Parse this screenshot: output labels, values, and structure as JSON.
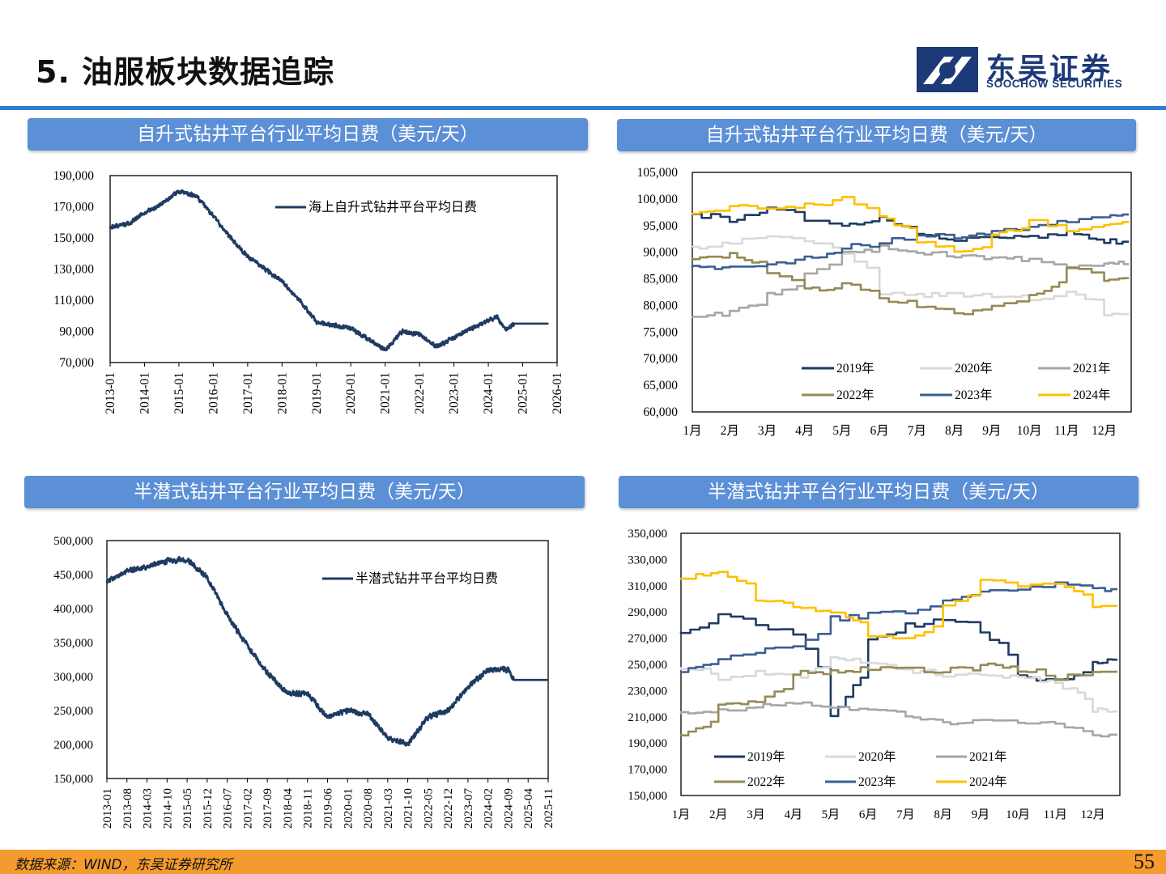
{
  "page": {
    "title": "5. 油服板块数据追踪",
    "logo_name": "东吴证券",
    "logo_en": "SOOCHOW SECURITIES",
    "footer_source": "数据来源：WIND，东吴证券研究所",
    "page_number": "55"
  },
  "colors": {
    "accent_blue": "#2f7fcf",
    "header_blue": "#5b8fd6",
    "navy": "#1f3b63",
    "footer_orange": "#f39b2e"
  },
  "panels": {
    "top_left_header": "自升式钻井平台行业平均日费（美元/天）",
    "top_right_header": "自升式钻井平台行业平均日费（美元/天）",
    "bottom_left_header": "半潜式钻井平台行业平均日费（美元/天）",
    "bottom_right_header": "半潜式钻井平台行业平均日费（美元/天）"
  },
  "chart_data": [
    {
      "type": "line",
      "id": "jackup_history",
      "yticks": [
        "190,000",
        "170,000",
        "150,000",
        "130,000",
        "110,000",
        "90,000",
        "70,000"
      ],
      "ylim": [
        70000,
        190000
      ],
      "xticks": [
        "2013-01",
        "2014-01",
        "2015-01",
        "2016-01",
        "2017-01",
        "2018-01",
        "2019-01",
        "2020-01",
        "2021-01",
        "2022-01",
        "2023-01",
        "2024-01",
        "2025-01",
        "2026-01"
      ],
      "xlim": [
        "2013-01",
        "2026-01"
      ],
      "grid": false,
      "legend_position": "top-right",
      "series": [
        {
          "name": "海上自升式钻井平台平均日费",
          "color": "#1f3b63",
          "x": [
            "2013-01",
            "2013-07",
            "2014-01",
            "2014-07",
            "2015-01",
            "2015-07",
            "2016-01",
            "2016-07",
            "2017-01",
            "2017-07",
            "2018-01",
            "2018-07",
            "2019-01",
            "2019-07",
            "2020-01",
            "2020-07",
            "2021-01",
            "2021-07",
            "2022-01",
            "2022-07",
            "2023-01",
            "2023-07",
            "2024-01",
            "2024-04",
            "2024-07",
            "2024-10",
            "2025-01",
            "2025-10"
          ],
          "values": [
            157000,
            159000,
            166000,
            172000,
            180000,
            177000,
            164000,
            150000,
            138000,
            130000,
            122000,
            110000,
            96000,
            94000,
            92000,
            85000,
            78000,
            90000,
            88000,
            80000,
            86000,
            92000,
            97000,
            99000,
            91000,
            95000,
            95000,
            95000
          ]
        }
      ]
    },
    {
      "type": "line",
      "id": "jackup_by_year",
      "yticks": [
        "105,000",
        "100,000",
        "95,000",
        "90,000",
        "85,000",
        "80,000",
        "75,000",
        "70,000",
        "65,000",
        "60,000"
      ],
      "ylim": [
        60000,
        105000
      ],
      "xticks": [
        "1月",
        "2月",
        "3月",
        "4月",
        "5月",
        "6月",
        "7月",
        "8月",
        "9月",
        "10月",
        "11月",
        "12月"
      ],
      "grid": false,
      "legend_position": "bottom",
      "series": [
        {
          "name": "2019年",
          "color": "#1f3b63",
          "values": [
            97000,
            96000,
            98500,
            96000,
            95000,
            96500,
            93000,
            92500,
            93000,
            93000,
            93500,
            92000
          ]
        },
        {
          "name": "2020年",
          "color": "#d9d9d9",
          "values": [
            91000,
            92000,
            93000,
            92000,
            90000,
            82000,
            82000,
            82000,
            82000,
            81000,
            83000,
            78000
          ]
        },
        {
          "name": "2021年",
          "color": "#a6a6a6",
          "values": [
            78000,
            79000,
            82000,
            86000,
            90000,
            91000,
            90000,
            89000,
            89000,
            88500,
            87000,
            88000
          ]
        },
        {
          "name": "2022年",
          "color": "#948a54",
          "values": [
            89000,
            89500,
            86000,
            83000,
            84000,
            81000,
            80000,
            78500,
            80000,
            82000,
            87000,
            85000
          ]
        },
        {
          "name": "2023年",
          "color": "#3a5f92",
          "values": [
            87000,
            87500,
            88000,
            89000,
            91000,
            92000,
            93000,
            93000,
            94000,
            95000,
            96000,
            96800
          ]
        },
        {
          "name": "2024年",
          "color": "#ffc000",
          "values": [
            97000,
            98500,
            98000,
            99000,
            100000,
            96500,
            92000,
            90000,
            93000,
            96000,
            93500,
            95500
          ]
        }
      ]
    },
    {
      "type": "line",
      "id": "semisub_history",
      "yticks": [
        "500,000",
        "450,000",
        "400,000",
        "350,000",
        "300,000",
        "250,000",
        "200,000",
        "150,000"
      ],
      "ylim": [
        150000,
        500000
      ],
      "xticks": [
        "2013-01",
        "2013-08",
        "2014-03",
        "2014-10",
        "2015-05",
        "2015-12",
        "2016-07",
        "2017-02",
        "2017-09",
        "2018-04",
        "2018-11",
        "2019-06",
        "2020-01",
        "2020-08",
        "2021-03",
        "2021-10",
        "2022-05",
        "2022-12",
        "2023-07",
        "2024-02",
        "2024-09",
        "2025-04",
        "2025-11"
      ],
      "xlim": [
        "2013-01",
        "2025-11"
      ],
      "grid": false,
      "legend_position": "top-right",
      "series": [
        {
          "name": "半潜式钻井平台平均日费",
          "color": "#1f3b63",
          "x": [
            "2013-01",
            "2013-08",
            "2014-03",
            "2014-10",
            "2015-05",
            "2015-12",
            "2016-07",
            "2017-02",
            "2017-09",
            "2018-04",
            "2018-11",
            "2019-06",
            "2020-01",
            "2020-08",
            "2021-03",
            "2021-10",
            "2022-05",
            "2022-12",
            "2023-07",
            "2024-02",
            "2024-09",
            "2024-11",
            "2025-11"
          ],
          "values": [
            440000,
            455000,
            462000,
            470000,
            472000,
            445000,
            390000,
            345000,
            305000,
            275000,
            275000,
            240000,
            250000,
            245000,
            210000,
            200000,
            240000,
            250000,
            285000,
            310000,
            310000,
            295000,
            295000
          ]
        }
      ]
    },
    {
      "type": "line",
      "id": "semisub_by_year",
      "yticks": [
        "350,000",
        "330,000",
        "310,000",
        "290,000",
        "270,000",
        "250,000",
        "230,000",
        "210,000",
        "190,000",
        "170,000",
        "150,000"
      ],
      "ylim": [
        150000,
        350000
      ],
      "xticks": [
        "1月",
        "2月",
        "3月",
        "4月",
        "5月",
        "6月",
        "7月",
        "8月",
        "9月",
        "10月",
        "11月",
        "12月"
      ],
      "grid": false,
      "legend_position": "bottom",
      "series": [
        {
          "name": "2019年",
          "color": "#1f3b63",
          "values": [
            275000,
            290000,
            278000,
            272000,
            212000,
            270000,
            280000,
            285000,
            275000,
            240000,
            238000,
            252000
          ]
        },
        {
          "name": "2020年",
          "color": "#d9d9d9",
          "values": [
            248000,
            240000,
            245000,
            240000,
            255000,
            250000,
            245000,
            242000,
            242000,
            240000,
            235000,
            215000
          ]
        },
        {
          "name": "2021年",
          "color": "#a6a6a6",
          "values": [
            212000,
            216000,
            218000,
            222000,
            216000,
            214000,
            210000,
            205000,
            208000,
            205000,
            205000,
            195000
          ]
        },
        {
          "name": "2022年",
          "color": "#948a54",
          "values": [
            195000,
            218000,
            222000,
            243000,
            245000,
            247000,
            246000,
            245000,
            250000,
            246000,
            240000,
            243000
          ]
        },
        {
          "name": "2023年",
          "color": "#3a5f92",
          "values": [
            244000,
            255000,
            260000,
            265000,
            285000,
            288000,
            290000,
            300000,
            305000,
            308000,
            312000,
            307000
          ]
        },
        {
          "name": "2024年",
          "color": "#ffc000",
          "values": [
            316000,
            320000,
            300000,
            292000,
            290000,
            272000,
            268000,
            295000,
            315000,
            310000,
            312000,
            293000
          ]
        }
      ]
    }
  ]
}
